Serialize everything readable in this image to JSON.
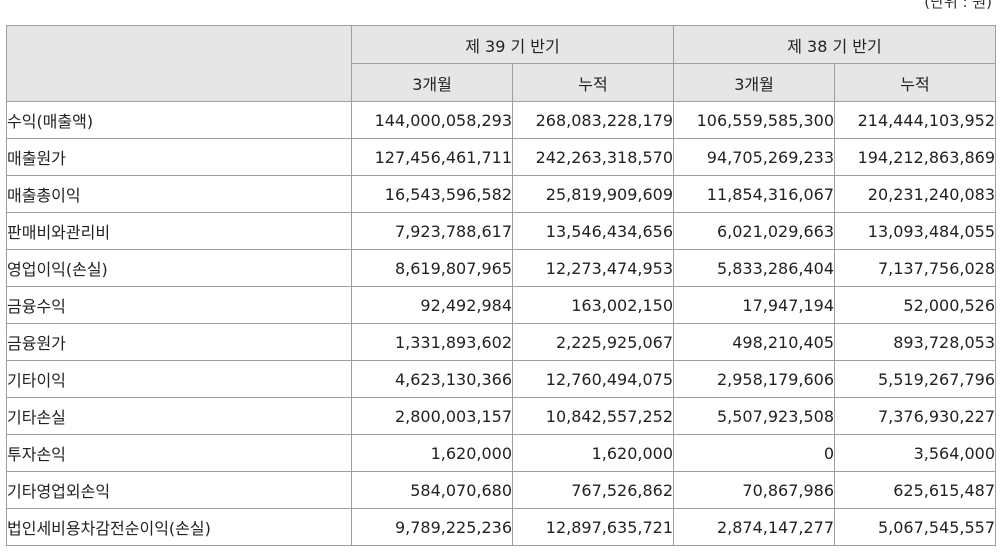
{
  "unit_label": "(단위 : 원)",
  "header": {
    "period_current": "제 39 기 반기",
    "period_prior": "제 38 기 반기",
    "sub_current_3m": "3개월",
    "sub_current_cum": "누적",
    "sub_prior_3m": "3개월",
    "sub_prior_cum": "누적"
  },
  "rows": [
    {
      "label": "수익(매출액)",
      "cur_3m": "144,000,058,293",
      "cur_cum": "268,083,228,179",
      "prior_3m": "106,559,585,300",
      "prior_cum": "214,444,103,952"
    },
    {
      "label": "매출원가",
      "cur_3m": "127,456,461,711",
      "cur_cum": "242,263,318,570",
      "prior_3m": "94,705,269,233",
      "prior_cum": "194,212,863,869"
    },
    {
      "label": "매출총이익",
      "cur_3m": "16,543,596,582",
      "cur_cum": "25,819,909,609",
      "prior_3m": "11,854,316,067",
      "prior_cum": "20,231,240,083"
    },
    {
      "label": "판매비와관리비",
      "cur_3m": "7,923,788,617",
      "cur_cum": "13,546,434,656",
      "prior_3m": "6,021,029,663",
      "prior_cum": "13,093,484,055"
    },
    {
      "label": "영업이익(손실)",
      "cur_3m": "8,619,807,965",
      "cur_cum": "12,273,474,953",
      "prior_3m": "5,833,286,404",
      "prior_cum": "7,137,756,028"
    },
    {
      "label": "금융수익",
      "cur_3m": "92,492,984",
      "cur_cum": "163,002,150",
      "prior_3m": "17,947,194",
      "prior_cum": "52,000,526"
    },
    {
      "label": "금융원가",
      "cur_3m": "1,331,893,602",
      "cur_cum": "2,225,925,067",
      "prior_3m": "498,210,405",
      "prior_cum": "893,728,053"
    },
    {
      "label": "기타이익",
      "cur_3m": "4,623,130,366",
      "cur_cum": "12,760,494,075",
      "prior_3m": "2,958,179,606",
      "prior_cum": "5,519,267,796"
    },
    {
      "label": "기타손실",
      "cur_3m": "2,800,003,157",
      "cur_cum": "10,842,557,252",
      "prior_3m": "5,507,923,508",
      "prior_cum": "7,376,930,227"
    },
    {
      "label": "투자손익",
      "cur_3m": "1,620,000",
      "cur_cum": "1,620,000",
      "prior_3m": "0",
      "prior_cum": "3,564,000"
    },
    {
      "label": "기타영업외손익",
      "cur_3m": "584,070,680",
      "cur_cum": "767,526,862",
      "prior_3m": "70,867,986",
      "prior_cum": "625,615,487"
    },
    {
      "label": "법인세비용차감전순이익(손실)",
      "cur_3m": "9,789,225,236",
      "cur_cum": "12,897,635,721",
      "prior_3m": "2,874,147,277",
      "prior_cum": "5,067,545,557"
    }
  ]
}
